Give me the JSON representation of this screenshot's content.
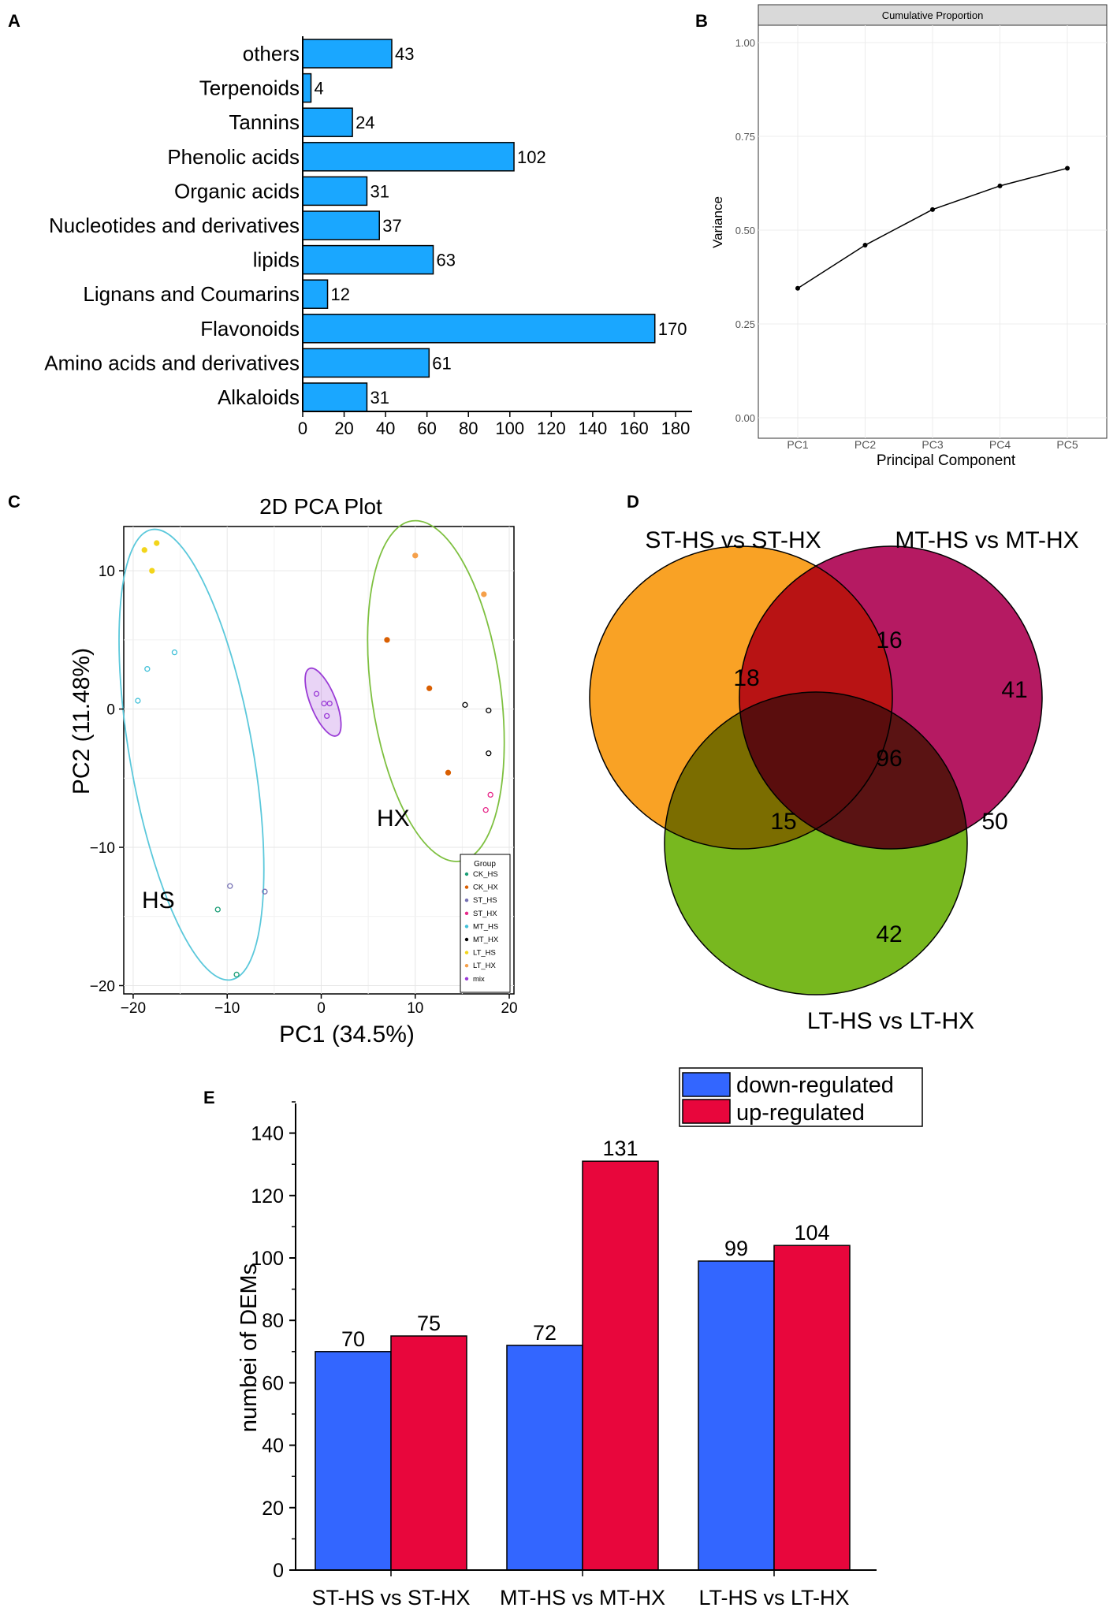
{
  "chart_data": [
    {
      "panel": "A",
      "type": "bar",
      "orientation": "horizontal",
      "categories": [
        "others",
        "Terpenoids",
        "Tannins",
        "Phenolic acids",
        "Organic acids",
        "Nucleotides and derivatives",
        "lipids",
        "Lignans and Coumarins",
        "Flavonoids",
        "Amino acids and derivatives",
        "Alkaloids"
      ],
      "values": [
        43,
        4,
        24,
        102,
        31,
        37,
        63,
        12,
        170,
        61,
        31
      ],
      "xlim": [
        0,
        180
      ],
      "xticks": [
        "0",
        "20",
        "40",
        "60",
        "80",
        "100",
        "120",
        "140",
        "160",
        "180"
      ],
      "color": "#1aa7ff"
    },
    {
      "panel": "B",
      "type": "line",
      "title": "Cumulative Proportion",
      "categories": [
        "PC1",
        "PC2",
        "PC3",
        "PC4",
        "PC5"
      ],
      "values": [
        0.345,
        0.46,
        0.555,
        0.618,
        0.665
      ],
      "xlabel": "Principal Component",
      "ylabel": "Variance",
      "ylim": [
        0,
        1.05
      ],
      "yticks": [
        "0.00",
        "0.25",
        "0.50",
        "0.75",
        "1.00"
      ]
    },
    {
      "panel": "C",
      "type": "scatter",
      "title": "2D PCA Plot",
      "xlabel": "PC1 (34.5%)",
      "ylabel": "PC2 (11.48%)",
      "xlim": [
        -21,
        20.5
      ],
      "ylim": [
        -20.6,
        13.2
      ],
      "xticks": [
        "−20",
        "−10",
        "0",
        "10",
        "20"
      ],
      "yticks": [
        "10",
        "0",
        "−10",
        "−20"
      ],
      "annotations": [
        "HS",
        "HX"
      ],
      "legend_title": "Group",
      "series": [
        {
          "name": "CK_HS",
          "color": "#1b9e77",
          "points": [
            [
              -11,
              -14.5
            ],
            [
              -9,
              -19.2
            ]
          ]
        },
        {
          "name": "CK_HX",
          "color": "#d95f02",
          "points": [
            [
              7,
              5
            ],
            [
              11.5,
              1.5
            ],
            [
              13.5,
              -4.6
            ]
          ]
        },
        {
          "name": "ST_HS",
          "color": "#7570b3",
          "points": [
            [
              -9.7,
              -12.8
            ],
            [
              -6,
              -13.2
            ]
          ]
        },
        {
          "name": "ST_HX",
          "color": "#e7298a",
          "points": [
            [
              18,
              -6.2
            ],
            [
              17.5,
              -7.3
            ]
          ]
        },
        {
          "name": "MT_HS",
          "color": "#41c0d8",
          "points": [
            [
              -19.5,
              0.6
            ],
            [
              -18.5,
              2.9
            ],
            [
              -15.6,
              4.1
            ]
          ]
        },
        {
          "name": "MT_HX",
          "color": "#000000",
          "points": [
            [
              15.3,
              0.3
            ],
            [
              17.8,
              -0.1
            ],
            [
              17.8,
              -3.2
            ]
          ]
        },
        {
          "name": "LT_HS",
          "color": "#f2d51b",
          "points": [
            [
              -18.8,
              11.5
            ],
            [
              -17.5,
              12
            ],
            [
              -18,
              10
            ]
          ]
        },
        {
          "name": "LT_HX",
          "color": "#f5a04a",
          "points": [
            [
              10,
              11.1
            ],
            [
              17.3,
              8.3
            ]
          ]
        },
        {
          "name": "mix",
          "color": "#9a3bd6",
          "points": [
            [
              -0.5,
              1.1
            ],
            [
              0.3,
              0.4
            ],
            [
              0.9,
              0.4
            ],
            [
              0.6,
              -0.5
            ]
          ]
        }
      ]
    },
    {
      "panel": "D",
      "type": "venn",
      "sets": [
        "ST-HS vs ST-HX",
        "MT-HS vs MT-HX",
        "LT-HS vs LT-HX"
      ],
      "regions": {
        "st_only": 18,
        "mt_only": 41,
        "lt_only": 42,
        "st_mt": 16,
        "st_lt": 15,
        "mt_lt": 50,
        "all": 96
      },
      "colors": [
        "#f9a225",
        "#b51a62",
        "#78b81f"
      ]
    },
    {
      "panel": "E",
      "type": "bar",
      "categories": [
        "ST-HS vs ST-HX",
        "MT-HS vs MT-HX",
        "LT-HS vs LT-HX"
      ],
      "series": [
        {
          "name": "down-regulated",
          "color": "#3366ff",
          "values": [
            70,
            72,
            99
          ]
        },
        {
          "name": "up-regulated",
          "color": "#e8063c",
          "values": [
            75,
            131,
            104
          ]
        }
      ],
      "ylabel": "numbei of DEMs",
      "ylim": [
        0,
        150
      ],
      "yticks": [
        "0",
        "20",
        "40",
        "60",
        "80",
        "100",
        "120",
        "140"
      ]
    }
  ]
}
